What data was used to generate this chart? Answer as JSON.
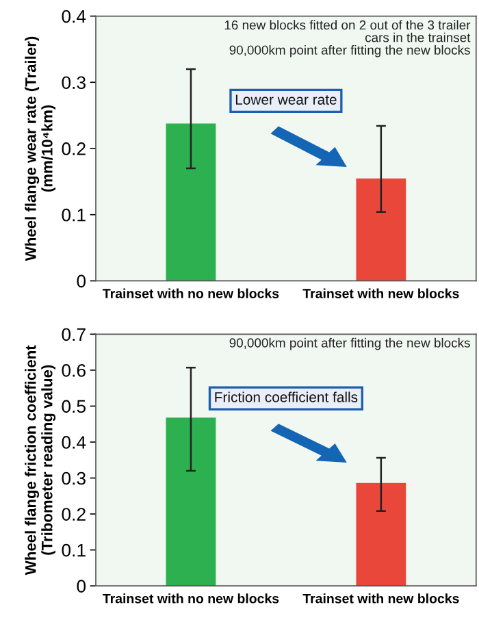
{
  "chart_data": [
    {
      "type": "bar",
      "ylabel": "Wheel flange wear rate (Trailer)\n(mm/10⁴km)",
      "categories": [
        "Trainset with no new blocks",
        "Trainset with new blocks"
      ],
      "values": [
        0.236,
        0.153
      ],
      "colors": [
        "#2db04f",
        "#e8473a"
      ],
      "errors": [
        [
          0.17,
          0.32
        ],
        [
          0.104,
          0.234
        ]
      ],
      "ylim": [
        0,
        0.4
      ],
      "yticks": [
        0,
        0.1,
        0.2,
        0.3,
        0.4
      ],
      "grid": false,
      "legend": false,
      "annotations": [
        "16 new blocks fitted on 2 out of the 3 trailer\ncars in the trainset",
        "90,000km point after fitting the new blocks",
        "Lower wear rate"
      ]
    },
    {
      "type": "bar",
      "ylabel": "Wheel flange friction coefficient\n(Tribometer reading value)",
      "categories": [
        "Trainset with no new blocks",
        "Trainset with new blocks"
      ],
      "values": [
        0.465,
        0.283
      ],
      "colors": [
        "#2db04f",
        "#e8473a"
      ],
      "errors": [
        [
          0.32,
          0.607
        ],
        [
          0.208,
          0.356
        ]
      ],
      "ylim": [
        0,
        0.7
      ],
      "yticks": [
        0,
        0.1,
        0.2,
        0.3,
        0.4,
        0.5,
        0.6,
        0.7
      ],
      "grid": false,
      "legend": false,
      "annotations": [
        "90,000km point after fitting the new blocks",
        "Friction coefficient falls"
      ]
    }
  ]
}
